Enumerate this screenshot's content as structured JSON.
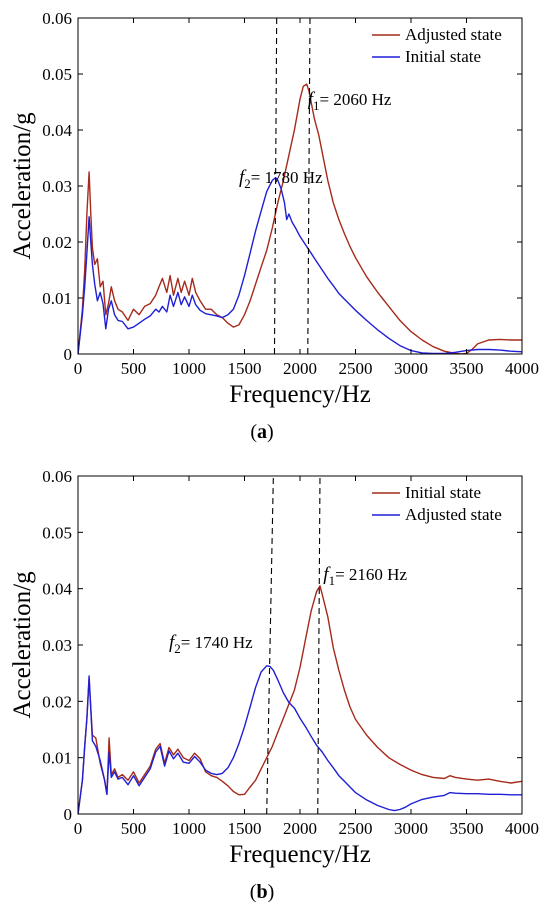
{
  "chart_data": [
    {
      "type": "line",
      "panel_label": "a",
      "xlabel": "Frequency/Hz",
      "ylabel": "Acceleration/g",
      "xlim": [
        0,
        4000
      ],
      "ylim": [
        0,
        0.06
      ],
      "xticks": [
        0,
        500,
        1000,
        1500,
        2000,
        2500,
        3000,
        3500,
        4000
      ],
      "yticks": [
        0,
        0.01,
        0.02,
        0.03,
        0.04,
        0.05,
        0.06
      ],
      "ytick_labels": [
        "0",
        "0.01",
        "0.02",
        "0.03",
        "0.04",
        "0.05",
        "0.06"
      ],
      "grid": false,
      "legend_position": "top-right",
      "annotations": [
        {
          "prefix": "f",
          "sub": "1",
          "text": "= 2060 Hz",
          "x": 2070,
          "y": 0.0445
        },
        {
          "prefix": "f",
          "sub": "2",
          "text": "= 1780 Hz",
          "x": 1450,
          "y": 0.0305
        }
      ],
      "vlines": [
        {
          "x": [
            1770,
            1790
          ]
        },
        {
          "x": [
            2070,
            2090
          ]
        }
      ],
      "series": [
        {
          "name": "Adjusted state",
          "color": "#a52a1a",
          "x": [
            0,
            40,
            60,
            80,
            100,
            115,
            130,
            150,
            175,
            200,
            225,
            250,
            275,
            300,
            330,
            360,
            400,
            450,
            500,
            550,
            600,
            650,
            700,
            730,
            760,
            800,
            830,
            860,
            900,
            930,
            960,
            1000,
            1030,
            1060,
            1100,
            1150,
            1200,
            1250,
            1300,
            1350,
            1400,
            1450,
            1500,
            1550,
            1600,
            1650,
            1700,
            1750,
            1800,
            1850,
            1900,
            1950,
            2000,
            2030,
            2060,
            2080,
            2100,
            2130,
            2170,
            2200,
            2250,
            2300,
            2350,
            2400,
            2450,
            2500,
            2600,
            2700,
            2800,
            2900,
            3000,
            3100,
            3200,
            3300,
            3400,
            3450,
            3500,
            3550,
            3600,
            3700,
            3800,
            3900,
            4000
          ],
          "y": [
            0.0,
            0.008,
            0.015,
            0.025,
            0.0325,
            0.025,
            0.019,
            0.016,
            0.017,
            0.012,
            0.013,
            0.007,
            0.009,
            0.012,
            0.0095,
            0.008,
            0.0075,
            0.006,
            0.008,
            0.007,
            0.0085,
            0.009,
            0.0105,
            0.012,
            0.0135,
            0.011,
            0.014,
            0.0105,
            0.0135,
            0.011,
            0.013,
            0.0105,
            0.0135,
            0.011,
            0.0095,
            0.008,
            0.008,
            0.007,
            0.0065,
            0.0055,
            0.0048,
            0.0052,
            0.007,
            0.0095,
            0.0125,
            0.0155,
            0.0185,
            0.0225,
            0.027,
            0.031,
            0.0355,
            0.04,
            0.0455,
            0.0478,
            0.0482,
            0.047,
            0.045,
            0.042,
            0.039,
            0.036,
            0.031,
            0.027,
            0.024,
            0.0215,
            0.0192,
            0.0172,
            0.0138,
            0.011,
            0.0085,
            0.006,
            0.004,
            0.0025,
            0.0013,
            0.0005,
            0.0001,
            0.0,
            0.0001,
            0.0008,
            0.0018,
            0.0025,
            0.0026,
            0.0025,
            0.0025
          ]
        },
        {
          "name": "Initial state",
          "color": "#1f1fd6",
          "x": [
            0,
            40,
            60,
            80,
            100,
            115,
            130,
            150,
            175,
            200,
            225,
            250,
            275,
            300,
            330,
            360,
            400,
            450,
            500,
            550,
            600,
            650,
            700,
            730,
            760,
            800,
            830,
            860,
            900,
            930,
            960,
            1000,
            1030,
            1060,
            1100,
            1150,
            1200,
            1250,
            1300,
            1350,
            1400,
            1450,
            1500,
            1550,
            1600,
            1650,
            1700,
            1750,
            1780,
            1800,
            1830,
            1860,
            1880,
            1900,
            1930,
            1960,
            2000,
            2050,
            2100,
            2150,
            2200,
            2250,
            2300,
            2350,
            2400,
            2450,
            2500,
            2600,
            2700,
            2800,
            2900,
            3000,
            3100,
            3200,
            3300,
            3400,
            3500,
            3600,
            3700,
            3800,
            3900,
            4000
          ],
          "y": [
            0.0,
            0.007,
            0.012,
            0.018,
            0.0245,
            0.02,
            0.016,
            0.0125,
            0.0095,
            0.011,
            0.009,
            0.0045,
            0.008,
            0.0095,
            0.007,
            0.006,
            0.0058,
            0.0045,
            0.0048,
            0.0055,
            0.0062,
            0.0068,
            0.008,
            0.0075,
            0.0085,
            0.0075,
            0.0105,
            0.0085,
            0.011,
            0.0088,
            0.0102,
            0.0085,
            0.0105,
            0.0088,
            0.0078,
            0.0072,
            0.007,
            0.0068,
            0.0065,
            0.007,
            0.008,
            0.0105,
            0.014,
            0.018,
            0.022,
            0.0255,
            0.029,
            0.031,
            0.0315,
            0.031,
            0.0295,
            0.027,
            0.024,
            0.025,
            0.0235,
            0.0225,
            0.021,
            0.0195,
            0.018,
            0.0165,
            0.015,
            0.0135,
            0.0122,
            0.0108,
            0.0098,
            0.0088,
            0.0078,
            0.006,
            0.0043,
            0.0028,
            0.0015,
            0.0006,
            0.0002,
            0.0001,
            0.0001,
            0.0003,
            0.0006,
            0.0008,
            0.0008,
            0.0007,
            0.0005,
            0.0004
          ]
        }
      ]
    },
    {
      "type": "line",
      "panel_label": "b",
      "xlabel": "Frequency/Hz",
      "ylabel": "Acceleration/g",
      "xlim": [
        0,
        4000
      ],
      "ylim": [
        0,
        0.06
      ],
      "xticks": [
        0,
        500,
        1000,
        1500,
        2000,
        2500,
        3000,
        3500,
        4000
      ],
      "yticks": [
        0,
        0.01,
        0.02,
        0.03,
        0.04,
        0.05,
        0.06
      ],
      "ytick_labels": [
        "0",
        "0.01",
        "0.02",
        "0.03",
        "0.04",
        "0.05",
        "0.06"
      ],
      "grid": false,
      "legend_position": "top-right",
      "annotations": [
        {
          "prefix": "f",
          "sub": "1",
          "text": "= 2160 Hz",
          "x": 2210,
          "y": 0.0415
        },
        {
          "prefix": "f",
          "sub": "2",
          "text": "= 1740 Hz",
          "x": 820,
          "y": 0.0295
        }
      ],
      "vlines": [
        {
          "x": [
            1700,
            1760
          ]
        },
        {
          "x": [
            2160,
            2180
          ]
        }
      ],
      "series": [
        {
          "name": "Initial state",
          "color": "#a52a1a",
          "x": [
            0,
            40,
            60,
            80,
            100,
            130,
            160,
            200,
            240,
            260,
            280,
            300,
            330,
            360,
            400,
            450,
            500,
            550,
            600,
            650,
            700,
            740,
            780,
            820,
            860,
            900,
            950,
            1000,
            1050,
            1100,
            1150,
            1200,
            1250,
            1300,
            1350,
            1400,
            1450,
            1500,
            1550,
            1600,
            1650,
            1700,
            1750,
            1800,
            1850,
            1900,
            1950,
            2000,
            2050,
            2100,
            2150,
            2180,
            2200,
            2250,
            2300,
            2350,
            2400,
            2450,
            2500,
            2600,
            2700,
            2800,
            2900,
            3000,
            3100,
            3200,
            3300,
            3350,
            3400,
            3500,
            3600,
            3700,
            3800,
            3900,
            4000
          ],
          "y": [
            0.0,
            0.006,
            0.012,
            0.017,
            0.024,
            0.014,
            0.0135,
            0.009,
            0.006,
            0.0035,
            0.0135,
            0.007,
            0.008,
            0.0065,
            0.007,
            0.006,
            0.0075,
            0.0055,
            0.007,
            0.0085,
            0.0115,
            0.0125,
            0.009,
            0.0118,
            0.0105,
            0.0115,
            0.01,
            0.0095,
            0.0108,
            0.0098,
            0.0075,
            0.0068,
            0.0065,
            0.0058,
            0.005,
            0.004,
            0.0034,
            0.0035,
            0.0048,
            0.006,
            0.008,
            0.01,
            0.012,
            0.0145,
            0.017,
            0.0195,
            0.022,
            0.026,
            0.031,
            0.036,
            0.0395,
            0.0405,
            0.039,
            0.035,
            0.0295,
            0.0255,
            0.022,
            0.019,
            0.0168,
            0.014,
            0.0118,
            0.01,
            0.0088,
            0.0078,
            0.007,
            0.0065,
            0.0063,
            0.0068,
            0.0065,
            0.0062,
            0.006,
            0.0062,
            0.0058,
            0.0055,
            0.0058
          ]
        },
        {
          "name": "Adjusted state",
          "color": "#1f1fd6",
          "x": [
            0,
            40,
            60,
            80,
            100,
            130,
            160,
            200,
            240,
            260,
            280,
            300,
            330,
            360,
            400,
            450,
            500,
            550,
            600,
            650,
            700,
            740,
            780,
            820,
            860,
            900,
            950,
            1000,
            1050,
            1100,
            1150,
            1200,
            1250,
            1300,
            1350,
            1400,
            1450,
            1500,
            1550,
            1600,
            1650,
            1700,
            1730,
            1760,
            1800,
            1850,
            1900,
            1950,
            2000,
            2050,
            2100,
            2150,
            2200,
            2250,
            2300,
            2350,
            2400,
            2450,
            2500,
            2600,
            2700,
            2800,
            2850,
            2900,
            2950,
            3000,
            3100,
            3200,
            3300,
            3350,
            3400,
            3500,
            3600,
            3700,
            3800,
            3900,
            4000
          ],
          "y": [
            0.0,
            0.006,
            0.012,
            0.017,
            0.0245,
            0.013,
            0.012,
            0.0095,
            0.006,
            0.0035,
            0.011,
            0.0065,
            0.0075,
            0.0062,
            0.0065,
            0.0052,
            0.0068,
            0.005,
            0.0065,
            0.008,
            0.011,
            0.012,
            0.0085,
            0.0112,
            0.0098,
            0.0108,
            0.0092,
            0.009,
            0.0102,
            0.0092,
            0.0078,
            0.0072,
            0.007,
            0.0072,
            0.0082,
            0.01,
            0.0125,
            0.0155,
            0.019,
            0.0225,
            0.0252,
            0.0263,
            0.0262,
            0.0255,
            0.0238,
            0.0215,
            0.0198,
            0.0188,
            0.017,
            0.0155,
            0.0138,
            0.0122,
            0.011,
            0.0095,
            0.0082,
            0.0068,
            0.0058,
            0.0048,
            0.0038,
            0.0025,
            0.0015,
            0.0008,
            0.0006,
            0.0008,
            0.0012,
            0.0018,
            0.0026,
            0.003,
            0.0033,
            0.0038,
            0.0037,
            0.0036,
            0.0036,
            0.0035,
            0.0035,
            0.0034,
            0.0034
          ]
        }
      ]
    }
  ]
}
